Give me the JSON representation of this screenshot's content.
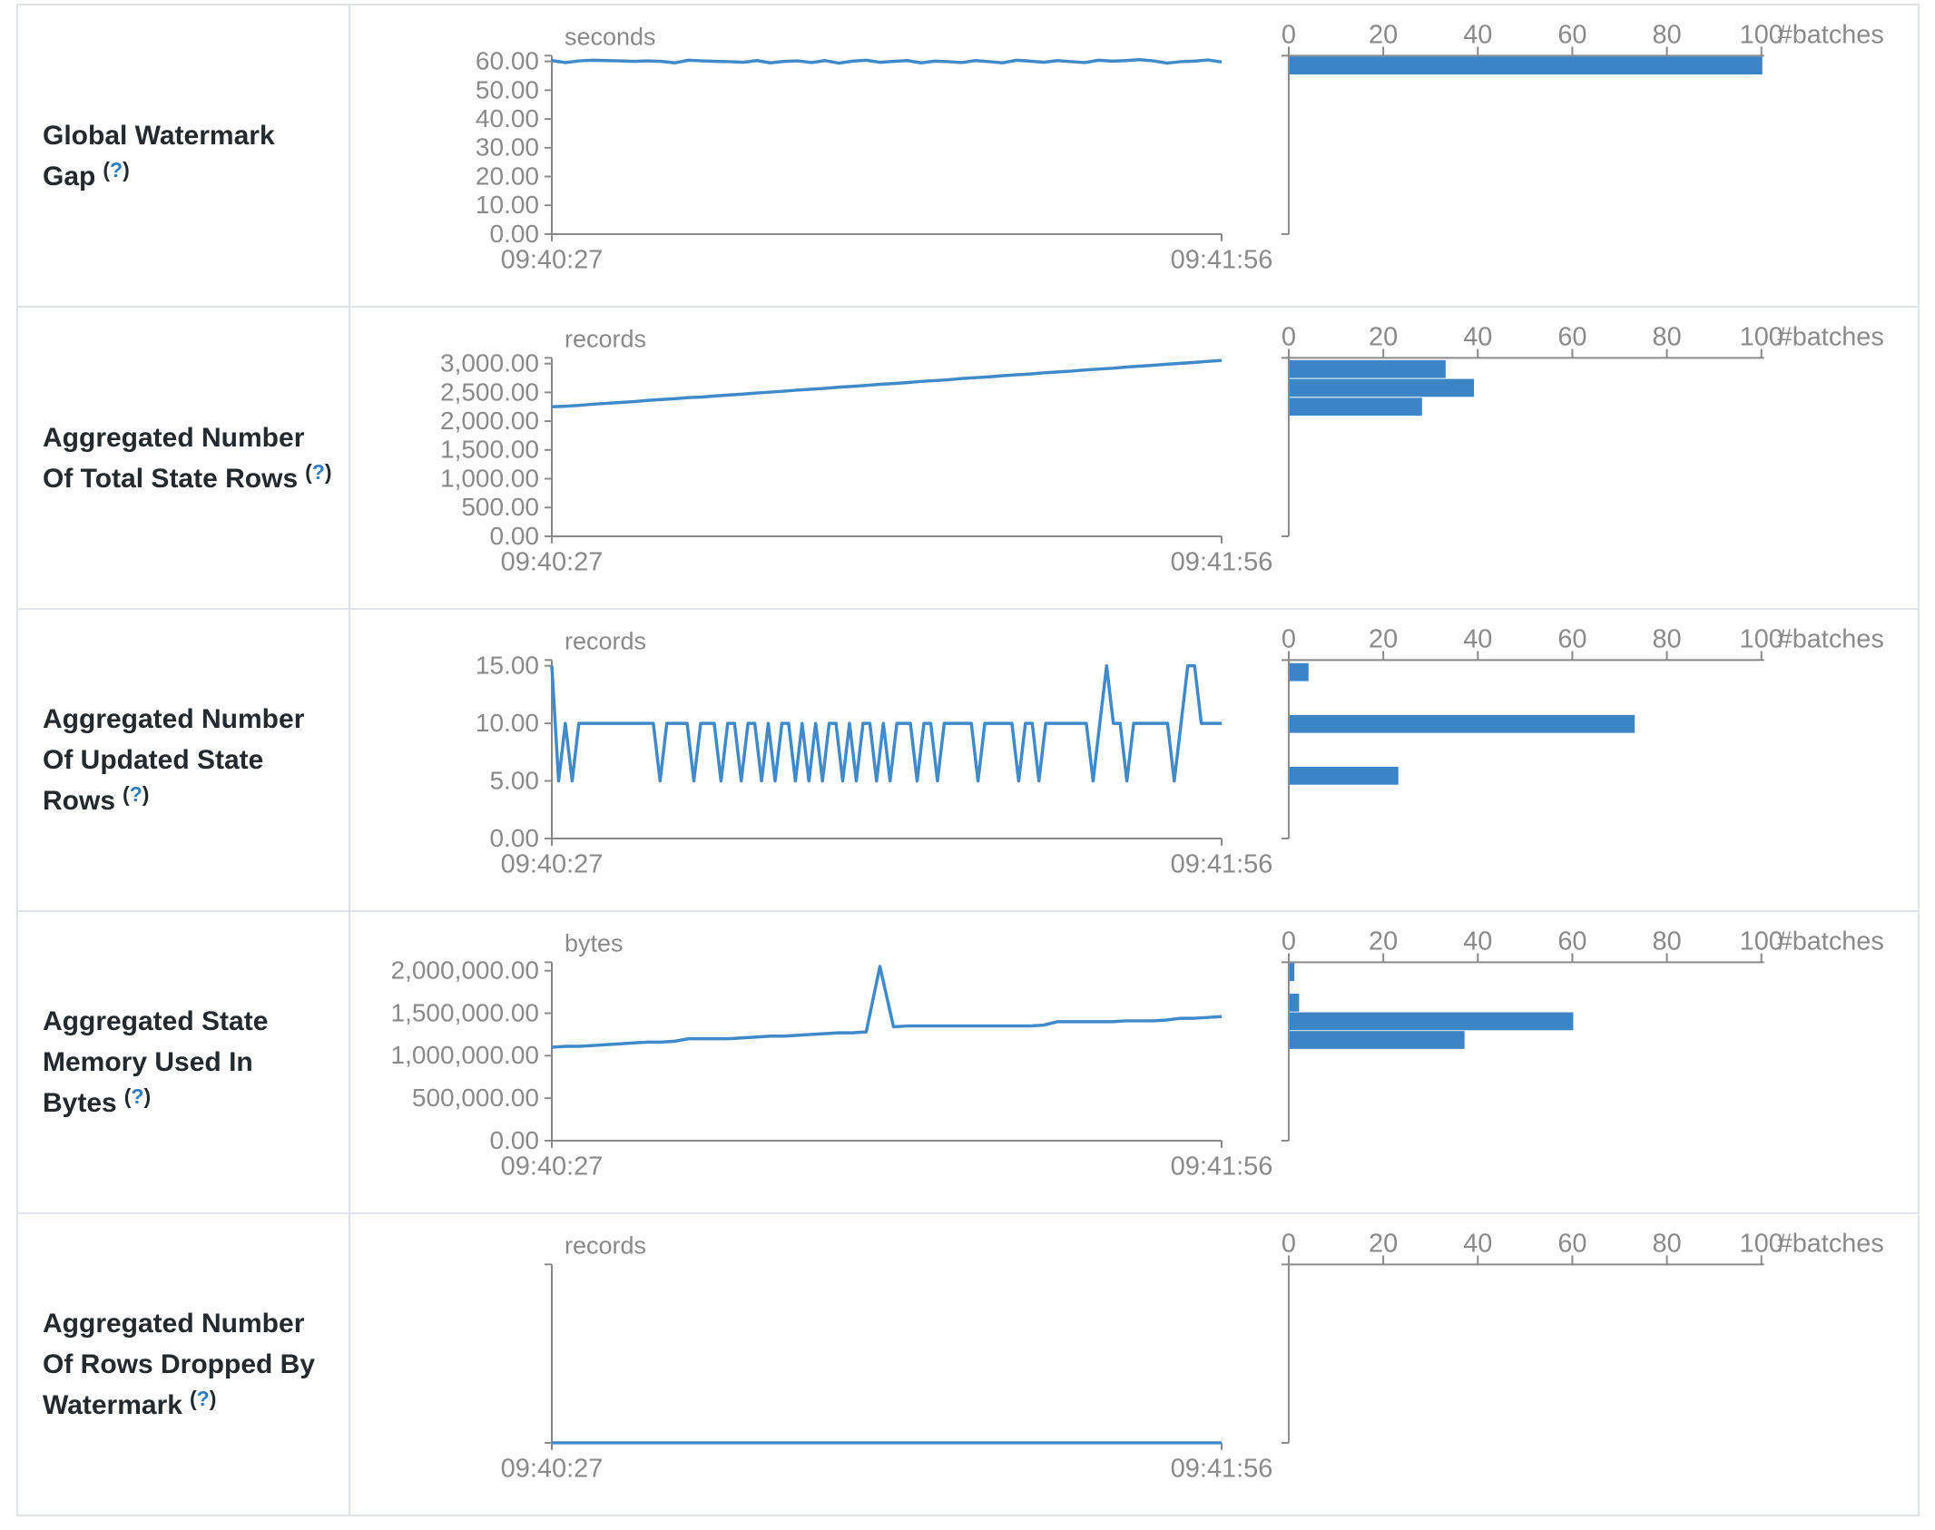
{
  "tokens": {
    "lparen": "(",
    "q": "?",
    "rparen": ")"
  },
  "colors": {
    "line": "#418ac9",
    "bar": "#3b85c7",
    "axis": "#8a8a8a",
    "axis_text": "#8a8a8a",
    "border": "#e0e3e7",
    "label_text": "#24292e",
    "help_link": "#2e7dbe"
  },
  "x_axis": {
    "start": "09:40:27",
    "end": "09:41:56"
  },
  "hist_axis": {
    "ticks": [
      0,
      20,
      40,
      60,
      80,
      100
    ],
    "label": "#batches",
    "max": 100
  },
  "chart_data": {
    "note": "see rows[] — each row holds one timeline series and one #batches histogram"
  },
  "rows": [
    {
      "label": "Global Watermark Gap",
      "unit": "seconds",
      "ymax": 62,
      "yticks": [
        {
          "v": 60,
          "t": "60.00"
        },
        {
          "v": 50,
          "t": "50.00"
        },
        {
          "v": 40,
          "t": "40.00"
        },
        {
          "v": 30,
          "t": "30.00"
        },
        {
          "v": 20,
          "t": "20.00"
        },
        {
          "v": 10,
          "t": "10.00"
        },
        {
          "v": 0,
          "t": "0.00"
        }
      ],
      "series": [
        60.3,
        59.6,
        60.2,
        60.4,
        60.3,
        60.2,
        60.0,
        60.2,
        60.0,
        59.5,
        60.4,
        60.2,
        60.0,
        59.9,
        59.7,
        60.3,
        59.5,
        60.0,
        60.2,
        59.6,
        60.3,
        59.4,
        60.1,
        60.4,
        59.7,
        60.0,
        60.3,
        59.5,
        60.1,
        59.9,
        59.6,
        60.3,
        59.9,
        59.5,
        60.4,
        60.1,
        59.7,
        60.3,
        59.9,
        59.6,
        60.4,
        60.1,
        60.3,
        60.6,
        60.2,
        59.4,
        59.9,
        60.1,
        60.5,
        59.8
      ],
      "bars": [
        {
          "value": 59,
          "count": 100
        }
      ]
    },
    {
      "label": "Aggregated Number Of Total State Rows",
      "unit": "records",
      "ymax": 3100,
      "yticks": [
        {
          "v": 3000,
          "t": "3,000.00"
        },
        {
          "v": 2500,
          "t": "2,500.00"
        },
        {
          "v": 2000,
          "t": "2,000.00"
        },
        {
          "v": 1500,
          "t": "1,500.00"
        },
        {
          "v": 1000,
          "t": "1,000.00"
        },
        {
          "v": 500,
          "t": "500.00"
        },
        {
          "v": 0,
          "t": "0.00"
        }
      ],
      "series": [
        2250,
        2260,
        2275,
        2295,
        2310,
        2325,
        2340,
        2360,
        2375,
        2390,
        2410,
        2420,
        2440,
        2455,
        2470,
        2490,
        2505,
        2520,
        2540,
        2555,
        2570,
        2590,
        2605,
        2620,
        2640,
        2655,
        2670,
        2690,
        2705,
        2720,
        2740,
        2755,
        2770,
        2790,
        2805,
        2820,
        2840,
        2855,
        2870,
        2890,
        2905,
        2920,
        2940,
        2955,
        2970,
        2990,
        3005,
        3020,
        3040,
        3055
      ],
      "bars": [
        {
          "value": 2905,
          "count": 33
        },
        {
          "value": 2578,
          "count": 39
        },
        {
          "value": 2251,
          "count": 28
        }
      ]
    },
    {
      "label": "Aggregated Number Of Updated State Rows",
      "unit": "records",
      "ymax": 15.5,
      "yticks": [
        {
          "v": 15,
          "t": "15.00"
        },
        {
          "v": 10,
          "t": "10.00"
        },
        {
          "v": 5,
          "t": "5.00"
        },
        {
          "v": 0,
          "t": "0.00"
        }
      ],
      "series": [
        15,
        5,
        10,
        5,
        10,
        10,
        10,
        10,
        10,
        10,
        10,
        10,
        10,
        10,
        10,
        10,
        5,
        10,
        10,
        10,
        10,
        5,
        10,
        10,
        10,
        5,
        10,
        10,
        5,
        10,
        10,
        5,
        10,
        5,
        10,
        10,
        5,
        10,
        5,
        10,
        5,
        10,
        10,
        5,
        10,
        5,
        10,
        10,
        5,
        10,
        5,
        10,
        10,
        10,
        5,
        10,
        10,
        5,
        10,
        10,
        10,
        10,
        10,
        5,
        10,
        10,
        10,
        10,
        10,
        5,
        10,
        10,
        5,
        10,
        10,
        10,
        10,
        10,
        10,
        10,
        5,
        10,
        15,
        10,
        10,
        5,
        10,
        10,
        10,
        10,
        10,
        10,
        5,
        10,
        15,
        15,
        10,
        10,
        10,
        10
      ],
      "bars": [
        {
          "value": 14.45,
          "count": 4
        },
        {
          "value": 9.95,
          "count": 73
        },
        {
          "value": 5.45,
          "count": 23
        }
      ]
    },
    {
      "label": "Aggregated State Memory Used In Bytes",
      "unit": "bytes",
      "ymax": 2100000,
      "yticks": [
        {
          "v": 2000000,
          "t": "2,000,000.00"
        },
        {
          "v": 1500000,
          "t": "1,500,000.00"
        },
        {
          "v": 1000000,
          "t": "1,000,000.00"
        },
        {
          "v": 500000,
          "t": "500,000.00"
        },
        {
          "v": 0,
          "t": "0.00"
        }
      ],
      "series": [
        1100000,
        1110000,
        1110000,
        1120000,
        1130000,
        1140000,
        1150000,
        1160000,
        1160000,
        1170000,
        1200000,
        1200000,
        1200000,
        1200000,
        1210000,
        1220000,
        1230000,
        1230000,
        1240000,
        1250000,
        1260000,
        1270000,
        1270000,
        1280000,
        2050000,
        1340000,
        1350000,
        1350000,
        1350000,
        1350000,
        1350000,
        1350000,
        1350000,
        1350000,
        1350000,
        1350000,
        1360000,
        1400000,
        1400000,
        1400000,
        1400000,
        1400000,
        1410000,
        1410000,
        1410000,
        1420000,
        1440000,
        1440000,
        1450000,
        1460000
      ],
      "bars": [
        {
          "value": 2020000,
          "count": 1
        },
        {
          "value": 1625000,
          "count": 2
        },
        {
          "value": 1405000,
          "count": 60
        },
        {
          "value": 1185000,
          "count": 37
        }
      ]
    },
    {
      "label": "Aggregated Number Of Rows Dropped By Watermark",
      "unit": "records",
      "ymax": 1,
      "yticks": [],
      "series": [
        0,
        0
      ],
      "bars": []
    }
  ]
}
